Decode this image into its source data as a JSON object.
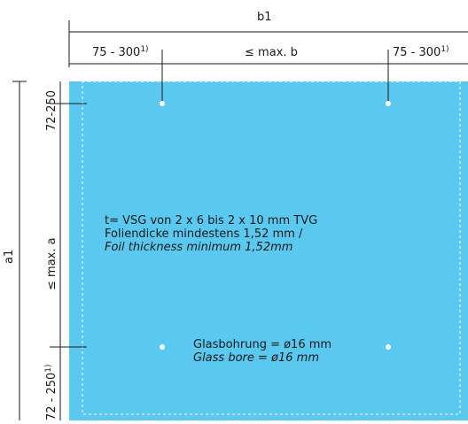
{
  "panel": {
    "fill": "#5ac8ef",
    "dashed_border_color": "#ffffff",
    "hole_color": "#ffffff"
  },
  "dimensions": {
    "top_overall": "b1",
    "top_left_margin": "75 - 300",
    "top_left_margin_note": "1)",
    "top_middle": "≤ max. b",
    "top_right_margin": "75 - 300",
    "top_right_margin_note": "1)",
    "left_overall": "a1",
    "left_top_margin": "72-250",
    "left_middle": "≤ max. a",
    "left_bottom_margin": "72 - 250",
    "left_bottom_margin_note": "1)"
  },
  "notes": {
    "thickness_line1": "t= VSG von 2 x 6 bis 2 x 10 mm TVG",
    "thickness_line2": "Foliendicke mindestens 1,52 mm /",
    "thickness_line3": "Foil thickness minimum 1,52mm",
    "bore_line1": "Glasbohrung = ø16 mm",
    "bore_line2": "Glass bore = ø16 mm"
  }
}
